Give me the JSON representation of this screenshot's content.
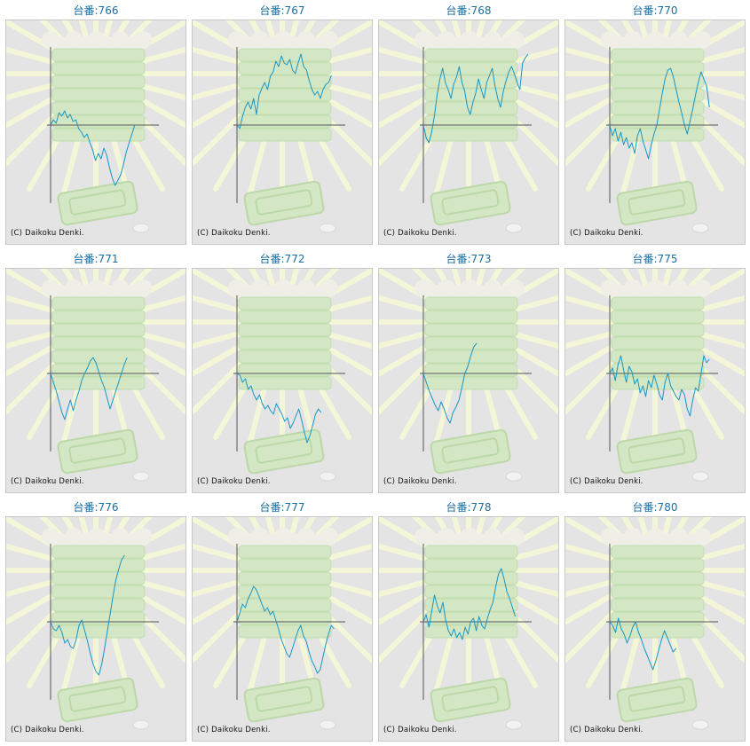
{
  "credit": "(C) Daikoku Denki.",
  "colors": {
    "line": "#1796c4",
    "axis": "#555555",
    "title": "#1a6fa3",
    "panel_bg": "#e4e4e4"
  },
  "chart_data": [
    {
      "type": "line",
      "title": "台番:766",
      "series": [
        {
          "values": [
            0,
            6,
            2,
            14,
            10,
            16,
            8,
            12,
            4,
            6,
            -4,
            -8,
            -14,
            -10,
            -20,
            -28,
            -40,
            -32,
            -38,
            -26,
            -34,
            -48,
            -60,
            -68,
            -62,
            -56,
            -44,
            -30,
            -20,
            -10,
            0
          ]
        }
      ]
    },
    {
      "type": "line",
      "title": "台番:767",
      "series": [
        {
          "values": [
            0,
            -4,
            10,
            20,
            26,
            18,
            30,
            12,
            34,
            42,
            48,
            40,
            55,
            60,
            72,
            66,
            78,
            70,
            68,
            74,
            62,
            58,
            70,
            80,
            66,
            62,
            50,
            40,
            34,
            38,
            30,
            40,
            46,
            48,
            56
          ]
        }
      ]
    },
    {
      "type": "line",
      "title": "台番:768",
      "series": [
        {
          "values": [
            0,
            -14,
            -20,
            -8,
            10,
            34,
            52,
            64,
            48,
            40,
            30,
            46,
            54,
            66,
            48,
            38,
            20,
            12,
            26,
            36,
            52,
            40,
            30,
            48,
            56,
            64,
            44,
            30,
            20,
            38,
            50,
            60,
            66,
            58,
            48,
            40,
            70,
            76,
            80
          ]
        }
      ]
    },
    {
      "type": "line",
      "title": "台番:770",
      "series": [
        {
          "values": [
            0,
            -12,
            -4,
            -18,
            -8,
            -22,
            -14,
            -26,
            -20,
            -32,
            -12,
            -4,
            -18,
            -28,
            -38,
            -22,
            -10,
            0,
            18,
            36,
            52,
            62,
            64,
            54,
            40,
            26,
            14,
            0,
            -10,
            4,
            18,
            34,
            48,
            60,
            52,
            44,
            20
          ]
        }
      ]
    },
    {
      "type": "line",
      "title": "台番:771",
      "series": [
        {
          "values": [
            0,
            -10,
            -20,
            -32,
            -44,
            -52,
            -40,
            -30,
            -42,
            -30,
            -20,
            -8,
            0,
            6,
            14,
            18,
            12,
            2,
            -8,
            -16,
            -28,
            -40,
            -30,
            -20,
            -10,
            0,
            10,
            18
          ]
        }
      ]
    },
    {
      "type": "line",
      "title": "台番:772",
      "series": [
        {
          "values": [
            0,
            -2,
            -10,
            -6,
            -18,
            -14,
            -24,
            -30,
            -24,
            -34,
            -40,
            -36,
            -42,
            -46,
            -34,
            -40,
            -46,
            -54,
            -50,
            -62,
            -56,
            -48,
            -40,
            -52,
            -66,
            -78,
            -70,
            -58,
            -46,
            -40,
            -44
          ]
        }
      ]
    },
    {
      "type": "line",
      "title": "台番:773",
      "series": [
        {
          "values": [
            0,
            -10,
            -20,
            -28,
            -36,
            -42,
            -32,
            -40,
            -50,
            -56,
            -44,
            -38,
            -30,
            -16,
            0,
            8,
            20,
            30,
            34
          ]
        }
      ]
    },
    {
      "type": "line",
      "title": "台番:775",
      "series": [
        {
          "values": [
            0,
            6,
            -8,
            10,
            20,
            4,
            -10,
            8,
            2,
            -12,
            -6,
            -22,
            -14,
            -26,
            -8,
            -16,
            -2,
            -12,
            -24,
            -30,
            -10,
            0,
            -14,
            -20,
            -26,
            -30,
            -18,
            -24,
            -40,
            -48,
            -30,
            -16,
            -20,
            0,
            20,
            12,
            16
          ]
        }
      ]
    },
    {
      "type": "line",
      "title": "台番:776",
      "series": [
        {
          "values": [
            0,
            -8,
            -10,
            -4,
            -12,
            -24,
            -20,
            -28,
            -30,
            -20,
            -4,
            2,
            -10,
            -22,
            -36,
            -48,
            -56,
            -60,
            -48,
            -30,
            -10,
            10,
            30,
            48,
            60,
            70,
            75
          ]
        }
      ]
    },
    {
      "type": "line",
      "title": "台番:777",
      "series": [
        {
          "values": [
            0,
            10,
            20,
            16,
            26,
            32,
            40,
            36,
            28,
            20,
            12,
            16,
            8,
            12,
            2,
            -8,
            -20,
            -28,
            -36,
            -40,
            -30,
            -20,
            -10,
            -4,
            -16,
            -22,
            -34,
            -44,
            -50,
            -58,
            -54,
            -40,
            -26,
            -14,
            -4,
            -8
          ]
        }
      ]
    },
    {
      "type": "line",
      "title": "台番:778",
      "series": [
        {
          "values": [
            0,
            8,
            -6,
            12,
            30,
            18,
            10,
            22,
            2,
            -10,
            -16,
            -8,
            -18,
            -12,
            -20,
            -6,
            -14,
            0,
            4,
            -10,
            6,
            -4,
            -8,
            4,
            14,
            22,
            40,
            54,
            60,
            48,
            34,
            26,
            16,
            6
          ]
        }
      ]
    },
    {
      "type": "line",
      "title": "台番:780",
      "series": [
        {
          "values": [
            0,
            -4,
            -12,
            4,
            -8,
            -14,
            -24,
            -16,
            -6,
            0,
            -12,
            -20,
            -30,
            -38,
            -46,
            -54,
            -44,
            -32,
            -20,
            -10,
            -18,
            -26,
            -34,
            -30
          ]
        }
      ]
    }
  ]
}
